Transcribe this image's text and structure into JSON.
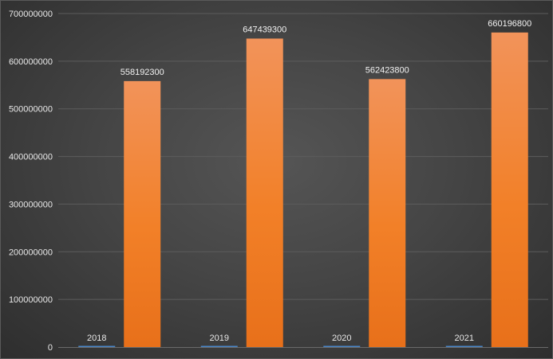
{
  "chart_data": {
    "type": "bar",
    "categories": [
      "2018",
      "2019",
      "2020",
      "2021"
    ],
    "series": [
      {
        "values": [
          0,
          0,
          0,
          0
        ],
        "color": "#4a86c8",
        "show_labels": false
      },
      {
        "values": [
          558192300,
          647439300,
          562423800,
          660196800
        ],
        "color": "#f07c22",
        "show_labels": true
      }
    ],
    "ylim": [
      0,
      700000000
    ],
    "yticks": [
      0,
      100000000,
      200000000,
      300000000,
      400000000,
      500000000,
      600000000,
      700000000
    ],
    "ytick_labels": [
      "0",
      "100000000",
      "200000000",
      "300000000",
      "400000000",
      "500000000",
      "600000000",
      "700000000"
    ],
    "data_labels": [
      "558192300",
      "647439300",
      "562423800",
      "660196800"
    ],
    "category_labels_position": "inside-plot-bottom",
    "grid": true,
    "legend": "none",
    "title": ""
  }
}
